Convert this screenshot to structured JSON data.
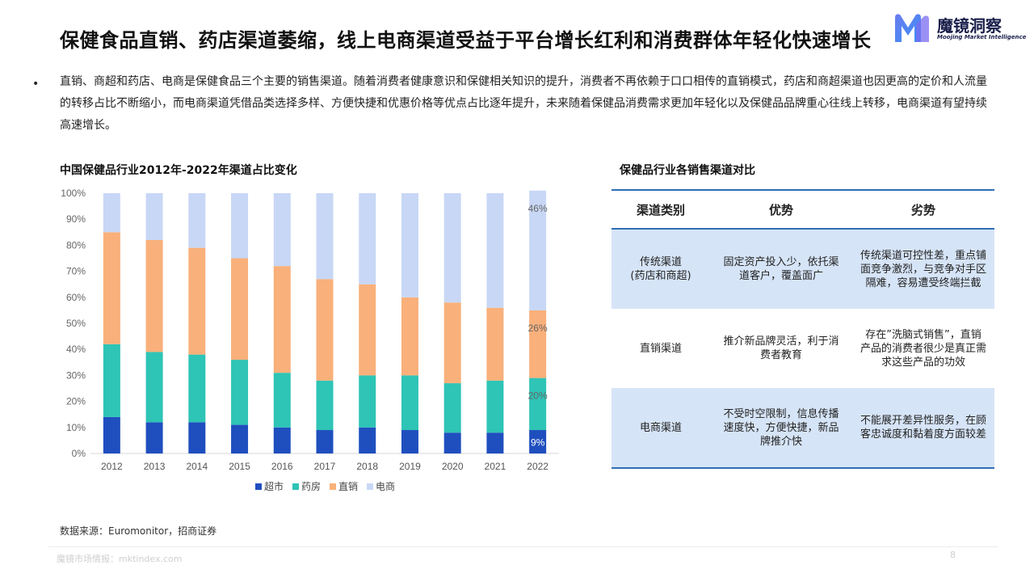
{
  "header": {
    "title": "保健食品直销、药店渠道萎缩，线上电商渠道受益于平台增长红利和消费群体年轻化快速增长"
  },
  "logo": {
    "name": "魔镜洞察",
    "subtitle": "Moojing Market Intelligence"
  },
  "bullet": {
    "symbol": "•",
    "text": "直销、商超和药店、电商是保健食品三个主要的销售渠道。随着消费者健康意识和保健相关知识的提升，消费者不再依赖于口口相传的直销模式，药店和商超渠道也因更高的定价和人流量的转移占比不断缩小，而电商渠道凭借品类选择多样、方便快捷和优惠价格等优点占比逐年提升，未来随着保健品消费需求更加年轻化以及保健品品牌重心往线上转移，电商渠道有望持续高速增长。"
  },
  "chart_title": "中国保健品行业2012年-2022年渠道占比变化",
  "table_title": "保健品行业各销售渠道对比",
  "chart_data": {
    "type": "bar",
    "stacked": true,
    "title": "中国保健品行业2012年-2022年渠道占比变化",
    "categories": [
      "2012",
      "2013",
      "2014",
      "2015",
      "2016",
      "2017",
      "2018",
      "2019",
      "2020",
      "2021",
      "2022"
    ],
    "series": [
      {
        "name": "超市",
        "color": "#1f4fbf",
        "values": [
          14,
          12,
          12,
          11,
          10,
          9,
          10,
          9,
          8,
          8,
          9
        ]
      },
      {
        "name": "药房",
        "color": "#2ec4b6",
        "values": [
          28,
          27,
          26,
          25,
          21,
          19,
          20,
          21,
          19,
          20,
          20
        ]
      },
      {
        "name": "直销",
        "color": "#f9b07a",
        "values": [
          43,
          43,
          41,
          39,
          41,
          39,
          35,
          30,
          31,
          28,
          26
        ]
      },
      {
        "name": "电商",
        "color": "#c8d7f5",
        "values": [
          15,
          18,
          21,
          25,
          28,
          33,
          35,
          40,
          42,
          44,
          46
        ]
      }
    ],
    "ylim": [
      0,
      100
    ],
    "y_ticks": [
      "0%",
      "10%",
      "20%",
      "30%",
      "40%",
      "50%",
      "60%",
      "70%",
      "80%",
      "90%",
      "100%"
    ],
    "data_labels": [
      {
        "category": "2022",
        "series": "超市",
        "text": "9%"
      },
      {
        "category": "2022",
        "series": "药房",
        "text": "20%"
      },
      {
        "category": "2022",
        "series": "直销",
        "text": "26%"
      },
      {
        "category": "2022",
        "series": "电商",
        "text": "46%"
      }
    ],
    "legend_position": "bottom",
    "grid": false
  },
  "table": {
    "headers": [
      "渠道类别",
      "优势",
      "劣势"
    ],
    "rows": [
      {
        "channel": "传统渠道\n(药店和商超)",
        "pros": "固定资产投入少，依托渠道客户，覆盖面广",
        "cons": "传统渠道可控性差，重点铺面竞争激烈，与竞争对手区隔难，容易遭受终端拦截"
      },
      {
        "channel": "直销渠道",
        "pros": "推介新品牌灵活，利于消费者教育",
        "cons": "存在”洗脑式销售”，直销产品的消费者很少是真正需求这些产品的功效"
      },
      {
        "channel": "电商渠道",
        "pros": "不受时空限制，信息传播速度快，方便快捷，新品牌推介快",
        "cons": "不能展开差异性服务，在顾客忠诚度和黏着度方面较差"
      }
    ]
  },
  "source": "数据来源：Euromonitor，招商证券",
  "footer": {
    "site": "魔镜市场情报：mktindex.com",
    "page": "8"
  }
}
